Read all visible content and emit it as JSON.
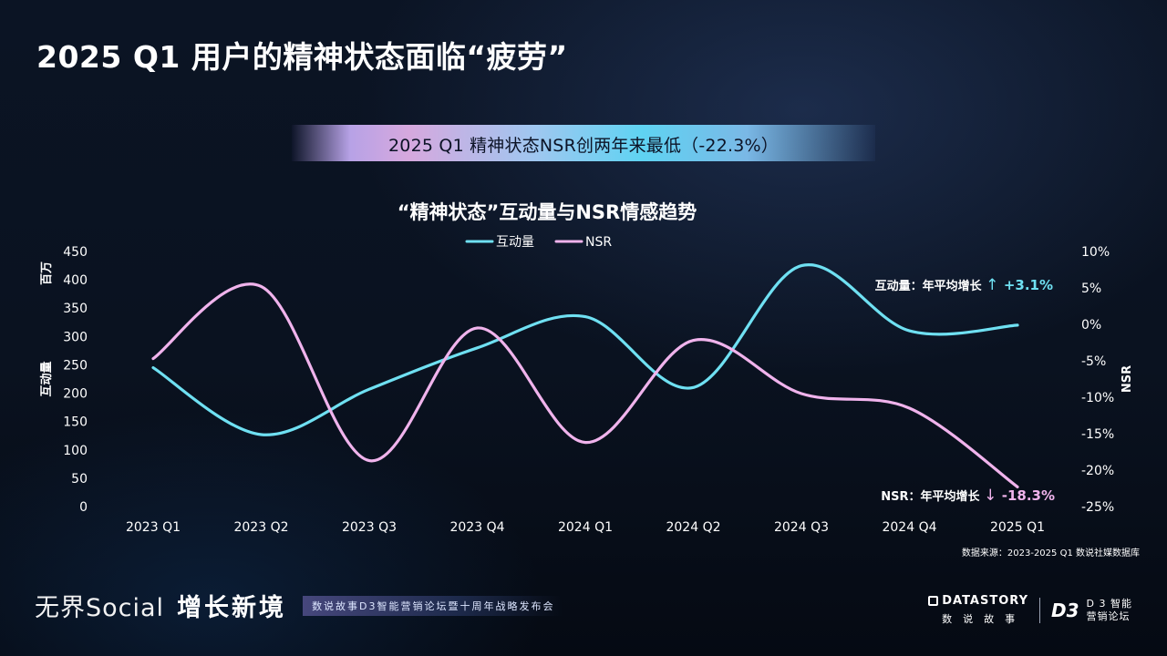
{
  "page": {
    "title": "2025 Q1 用户的精神状态面临“疲劳”",
    "banner": "2025 Q1 精神状态NSR创两年来最低（-22.3%）",
    "source": "数据来源：2023-2025 Q1 数说社媒数据库"
  },
  "footer": {
    "brand": "无界Social",
    "brand2": "增长新境",
    "tagline": "数说故事D3智能营销论坛暨十周年战略发布会",
    "logo_datastory": "DATASTORY",
    "logo_datastory_cn": "数说故事",
    "logo_d3": "D3",
    "logo_d3_line1": "D 3 智能",
    "logo_d3_line2": "营销论坛"
  },
  "chart_data": {
    "type": "line",
    "title": "“精神状态”互动量与NSR情感趋势",
    "categories": [
      "2023 Q1",
      "2023 Q2",
      "2023 Q3",
      "2023 Q4",
      "2024 Q1",
      "2024 Q2",
      "2024 Q3",
      "2024 Q4",
      "2025 Q1"
    ],
    "series": [
      {
        "name": "互动量",
        "axis": "left",
        "color": "#6fe0f2",
        "values": [
          245,
          127,
          207,
          280,
          335,
          210,
          425,
          310,
          320
        ]
      },
      {
        "name": "NSR",
        "axis": "right",
        "color": "#f0b3ec",
        "values": [
          -4.7,
          5.2,
          -18.7,
          -0.5,
          -16.2,
          -2.2,
          -9.5,
          -11.5,
          -22.3
        ]
      }
    ],
    "y_left": {
      "label": "互动量",
      "unit": "百万",
      "min": 0,
      "max": 450,
      "ticks": [
        "0",
        "50",
        "100",
        "150",
        "200",
        "250",
        "300",
        "350",
        "400",
        "450"
      ]
    },
    "y_right": {
      "label": "NSR",
      "min": -25,
      "max": 10,
      "ticks": [
        "-25%",
        "-20%",
        "-15%",
        "-10%",
        "-5%",
        "0%",
        "5%",
        "10%"
      ]
    },
    "legend_position": "top-center",
    "grid": false,
    "annotations": [
      {
        "prefix": "互动量：年平均增长",
        "arrow": "↑",
        "value": "+3.1%",
        "color": "#6fe0f2"
      },
      {
        "prefix": "NSR：年平均增长",
        "arrow": "↓",
        "value": "-18.3%",
        "color": "#f0b3ec"
      }
    ]
  }
}
